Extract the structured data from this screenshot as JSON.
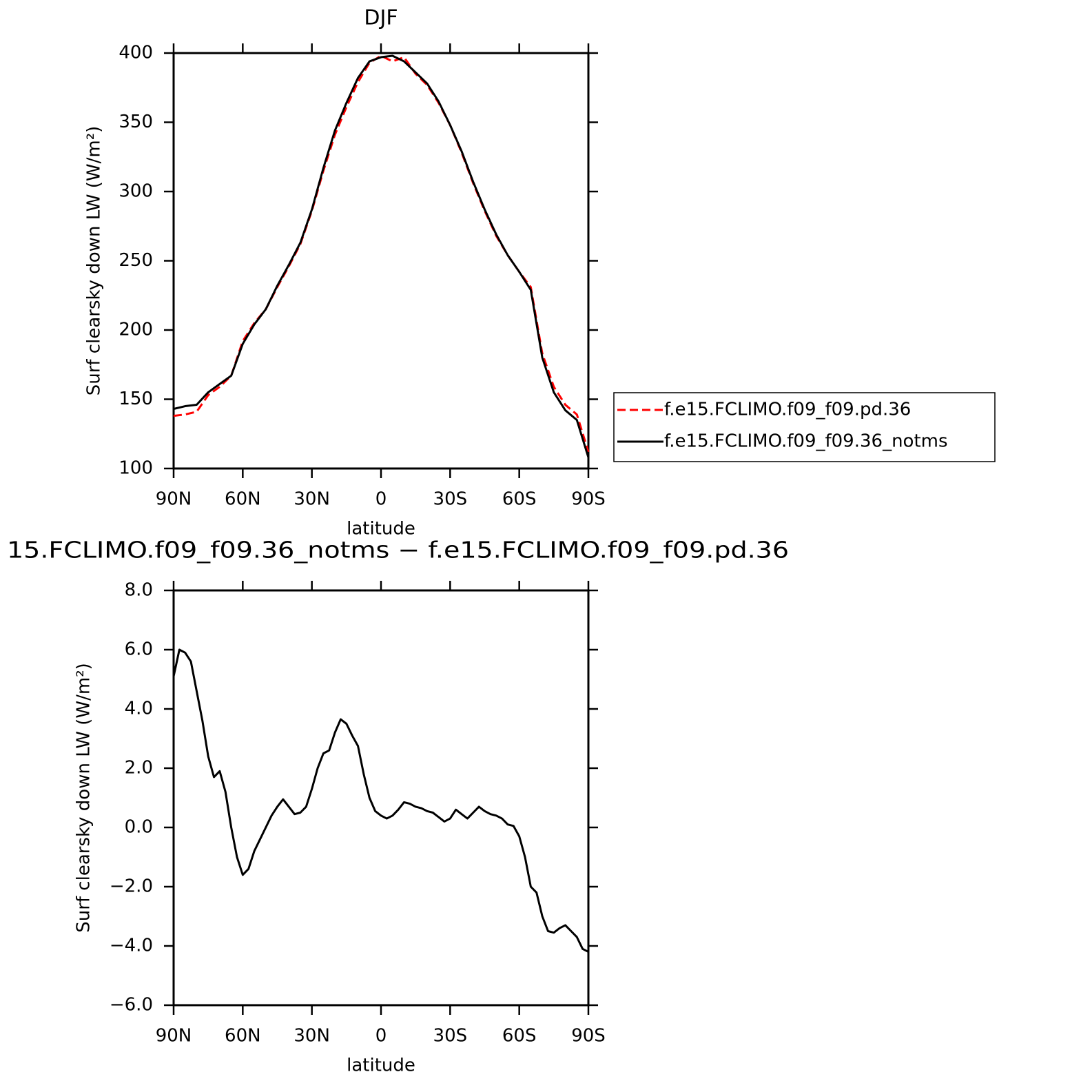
{
  "chart_data": [
    {
      "type": "line",
      "title": "DJF",
      "xlabel": "latitude",
      "ylabel": "Surf clearsky down LW (W/m²)",
      "xlim": [
        90,
        -90
      ],
      "ylim": [
        100,
        400
      ],
      "xticks": [
        {
          "value": 90,
          "label": "90N"
        },
        {
          "value": 60,
          "label": "60N"
        },
        {
          "value": 30,
          "label": "30N"
        },
        0,
        {
          "value": -30,
          "label": "30S"
        },
        {
          "value": -60,
          "label": "60S"
        },
        {
          "value": -90,
          "label": "90S"
        }
      ],
      "yticks": [
        100,
        150,
        200,
        250,
        300,
        350,
        400
      ],
      "legend": "right",
      "x": [
        90,
        85,
        80,
        75,
        70,
        65,
        60,
        55,
        50,
        45,
        40,
        35,
        30,
        25,
        20,
        15,
        10,
        5,
        0,
        -5,
        -10,
        -15,
        -20,
        -25,
        -30,
        -35,
        -40,
        -45,
        -50,
        -55,
        -60,
        -65,
        -70,
        -75,
        -80,
        -85,
        -90
      ],
      "series": [
        {
          "name": "f.e15.FCLIMO.f09_f09.pd.36",
          "color": "#ff0000",
          "line_style": "dashed",
          "values": [
            138,
            139,
            141,
            153,
            159,
            167,
            192,
            205,
            215,
            231,
            246,
            262,
            286,
            315,
            341,
            361,
            379,
            393,
            398,
            394,
            397,
            385,
            377,
            364,
            348,
            328,
            306,
            286,
            268,
            254,
            242,
            231,
            183,
            159,
            146,
            139,
            112
          ]
        },
        {
          "name": "f.e15.FCLIMO.f09_f09.36_notms",
          "color": "#000000",
          "line_style": "solid",
          "values": [
            143,
            145,
            146,
            155,
            161,
            167,
            190,
            204,
            215,
            232,
            247,
            263,
            287,
            317,
            344,
            364,
            382,
            394,
            397,
            398,
            394,
            386,
            378,
            365,
            348,
            329,
            307,
            287,
            269,
            254,
            242,
            229,
            180,
            155,
            142,
            135,
            108
          ]
        }
      ]
    },
    {
      "type": "line",
      "title": "15.FCLIMO.f09_f09.36_notms − f.e15.FCLIMO.f09_f09.pd.36",
      "xlabel": "latitude",
      "ylabel": "Surf clearsky down LW (W/m²)",
      "xlim": [
        90,
        -90
      ],
      "ylim": [
        -6,
        8
      ],
      "xticks": [
        {
          "value": 90,
          "label": "90N"
        },
        {
          "value": 60,
          "label": "60N"
        },
        {
          "value": 30,
          "label": "30N"
        },
        0,
        {
          "value": -30,
          "label": "30S"
        },
        {
          "value": -60,
          "label": "60S"
        },
        {
          "value": -90,
          "label": "90S"
        }
      ],
      "yticks": [
        {
          "value": -6,
          "label": "−6.0"
        },
        {
          "value": -4,
          "label": "−4.0"
        },
        {
          "value": -2,
          "label": "−2.0"
        },
        {
          "value": 0,
          "label": "0.0"
        },
        {
          "value": 2,
          "label": "2.0"
        },
        {
          "value": 4,
          "label": "4.0"
        },
        {
          "value": 6,
          "label": "6.0"
        },
        {
          "value": 8,
          "label": "8.0"
        }
      ],
      "x": [
        90,
        87.5,
        85,
        82.5,
        80,
        77.5,
        75,
        72.5,
        70,
        67.5,
        65,
        62.5,
        60,
        57.5,
        55,
        52.5,
        50,
        47.5,
        45,
        42.5,
        40,
        37.5,
        35,
        32.5,
        30,
        27.5,
        25,
        22.5,
        20,
        17.5,
        15,
        12.5,
        10,
        7.5,
        5,
        2.5,
        0,
        -2.5,
        -5,
        -7.5,
        -10,
        -12.5,
        -15,
        -17.5,
        -20,
        -22.5,
        -25,
        -27.5,
        -30,
        -32.5,
        -35,
        -37.5,
        -40,
        -42.5,
        -45,
        -47.5,
        -50,
        -52.5,
        -55,
        -57.5,
        -60,
        -62.5,
        -65,
        -67.5,
        -70,
        -72.5,
        -75,
        -77.5,
        -80,
        -82.5,
        -85,
        -87.5,
        -90
      ],
      "series": [
        {
          "color": "#000000",
          "line_style": "solid",
          "values": [
            5.1,
            6.0,
            5.9,
            5.6,
            4.6,
            3.6,
            2.4,
            1.7,
            1.9,
            1.2,
            0.0,
            -1.0,
            -1.6,
            -1.4,
            -0.8,
            -0.4,
            0.0,
            0.4,
            0.7,
            0.95,
            0.7,
            0.45,
            0.5,
            0.7,
            1.3,
            2.0,
            2.5,
            2.6,
            3.2,
            3.65,
            3.5,
            3.1,
            2.75,
            1.8,
            1.0,
            0.55,
            0.4,
            0.3,
            0.4,
            0.6,
            0.85,
            0.8,
            0.7,
            0.65,
            0.55,
            0.5,
            0.35,
            0.2,
            0.3,
            0.6,
            0.45,
            0.3,
            0.5,
            0.7,
            0.55,
            0.45,
            0.4,
            0.3,
            0.1,
            0.05,
            -0.3,
            -1.0,
            -2.0,
            -2.2,
            -3.0,
            -3.5,
            -3.55,
            -3.4,
            -3.3,
            -3.5,
            -3.7,
            -4.1,
            -4.2
          ]
        }
      ]
    }
  ]
}
